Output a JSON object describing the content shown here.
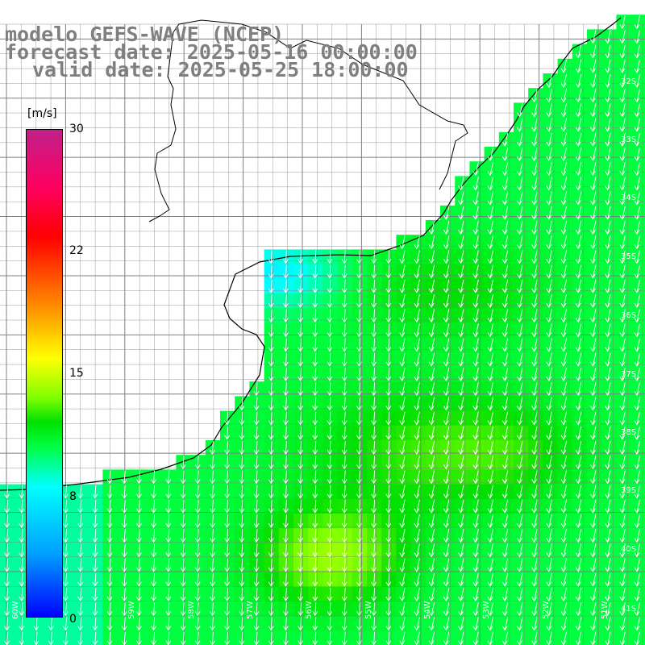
{
  "title": {
    "line1": "modelo GEFS-WAVE (NCEP)",
    "line2": "forecast date: 2025-05-16 00:00:00",
    "line3": "valid date: 2025-05-25 18:00:00"
  },
  "colorbar": {
    "unit": "[m/s]",
    "ticks": [
      "30",
      "22",
      "15",
      "8",
      "0"
    ],
    "tick_values": [
      30,
      22,
      15,
      8,
      0
    ],
    "range": [
      0,
      30
    ]
  },
  "lat_labels": [
    "32S",
    "33S",
    "34S",
    "35S",
    "36S",
    "37S",
    "38S",
    "39S",
    "40S",
    "41S"
  ],
  "lon_labels": [
    "60W",
    "59W",
    "58W",
    "57W",
    "56W",
    "55W",
    "54W",
    "53W",
    "52W",
    "51W"
  ],
  "colors": {
    "land": "#ffffff",
    "grid": "#7f7f7f",
    "coast": "#000000",
    "arrow": "#ffffff",
    "title": "#7f7f7f"
  }
}
